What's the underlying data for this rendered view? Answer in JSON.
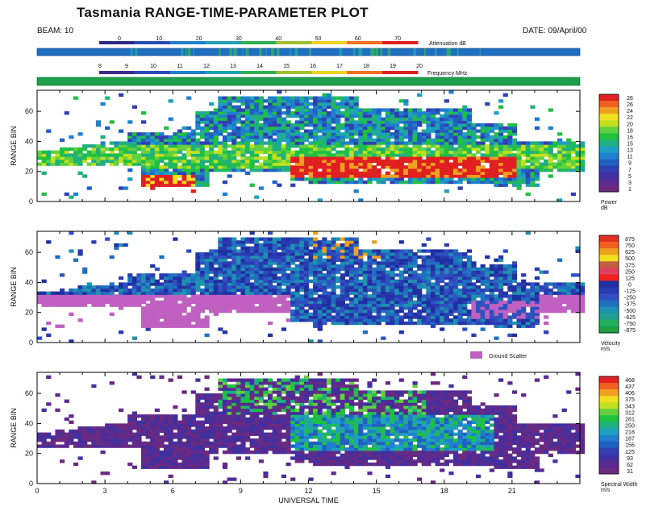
{
  "header": {
    "title": "Tasmania RANGE-TIME-PARAMETER PLOT",
    "beam": "BEAM: 10",
    "date": "DATE: 09/April/00"
  },
  "attenuation_scale": {
    "label": "Attenuation dB",
    "ticks": [
      "0",
      "10",
      "20",
      "30",
      "40",
      "50",
      "60",
      "70"
    ],
    "bar_color": "#1e6fc0"
  },
  "frequency_scale": {
    "label": "Frequency MHz",
    "ticks": [
      "8",
      "9",
      "10",
      "11",
      "12",
      "13",
      "14",
      "15",
      "16",
      "17",
      "18",
      "19",
      "20"
    ],
    "bar_color": "#1f9e4a"
  },
  "ground_scatter": {
    "label": "Ground Scatter",
    "color": "#c060c0"
  },
  "chart_data": [
    {
      "type": "heatmap",
      "parameter": "Power",
      "ylabel": "RANGE BIN",
      "xlabel": "",
      "xlim": [
        0,
        24
      ],
      "ylim": [
        0,
        74
      ],
      "yticks": [
        "0",
        "20",
        "40",
        "60"
      ],
      "colorbar_title": "Power",
      "colorbar_unit": "dB",
      "colorbar_ticks": [
        "28",
        "26",
        "24",
        "22",
        "20",
        "18",
        "16",
        "15",
        "13",
        "11",
        "9",
        "7",
        "5",
        "3",
        "1"
      ],
      "colors": [
        "#e02020",
        "#f06020",
        "#f0a020",
        "#f0e020",
        "#c0e020",
        "#60d040",
        "#20c040",
        "#20b080",
        "#20a0c0",
        "#2080d0",
        "#2060c0",
        "#3040b0",
        "#4030a0",
        "#5a2a90",
        "#6a2a80"
      ]
    },
    {
      "type": "heatmap",
      "parameter": "Velocity",
      "ylabel": "RANGE BIN",
      "xlabel": "",
      "xlim": [
        0,
        24
      ],
      "ylim": [
        0,
        74
      ],
      "yticks": [
        "0",
        "20",
        "40",
        "60"
      ],
      "colorbar_title": "Velocity",
      "colorbar_unit": "m/s",
      "colorbar_ticks": [
        "875",
        "750",
        "625",
        "500",
        "375",
        "250",
        "125",
        "0",
        "-125",
        "-250",
        "-375",
        "-500",
        "-625",
        "-750",
        "-875"
      ],
      "colors": [
        "#e03020",
        "#f06020",
        "#f0a020",
        "#f0e020",
        "#c06040",
        "#e04060",
        "#f02020",
        "#2030a0",
        "#2a3ab0",
        "#3050c0",
        "#2070c0",
        "#2090b0",
        "#20a090",
        "#20b060",
        "#20a040"
      ]
    },
    {
      "type": "heatmap",
      "parameter": "Spectral Width",
      "ylabel": "RANGE BIN",
      "xlabel": "UNIVERSAL TIME",
      "xlim": [
        0,
        24
      ],
      "xticks": [
        "0",
        "3",
        "6",
        "9",
        "12",
        "15",
        "18",
        "21"
      ],
      "ylim": [
        0,
        74
      ],
      "yticks": [
        "0",
        "20",
        "40",
        "60"
      ],
      "colorbar_title": "Spectral Width",
      "colorbar_unit": "m/s",
      "colorbar_ticks": [
        "468",
        "437",
        "406",
        "375",
        "343",
        "312",
        "281",
        "250",
        "218",
        "187",
        "156",
        "125",
        "93",
        "62",
        "31"
      ],
      "colors": [
        "#e02020",
        "#f06020",
        "#f0a020",
        "#f0e020",
        "#c0e020",
        "#60d040",
        "#20c040",
        "#20b080",
        "#20a0c0",
        "#2080d0",
        "#2060c0",
        "#3040b0",
        "#4030a0",
        "#5a2a90",
        "#6a2a80"
      ]
    }
  ]
}
